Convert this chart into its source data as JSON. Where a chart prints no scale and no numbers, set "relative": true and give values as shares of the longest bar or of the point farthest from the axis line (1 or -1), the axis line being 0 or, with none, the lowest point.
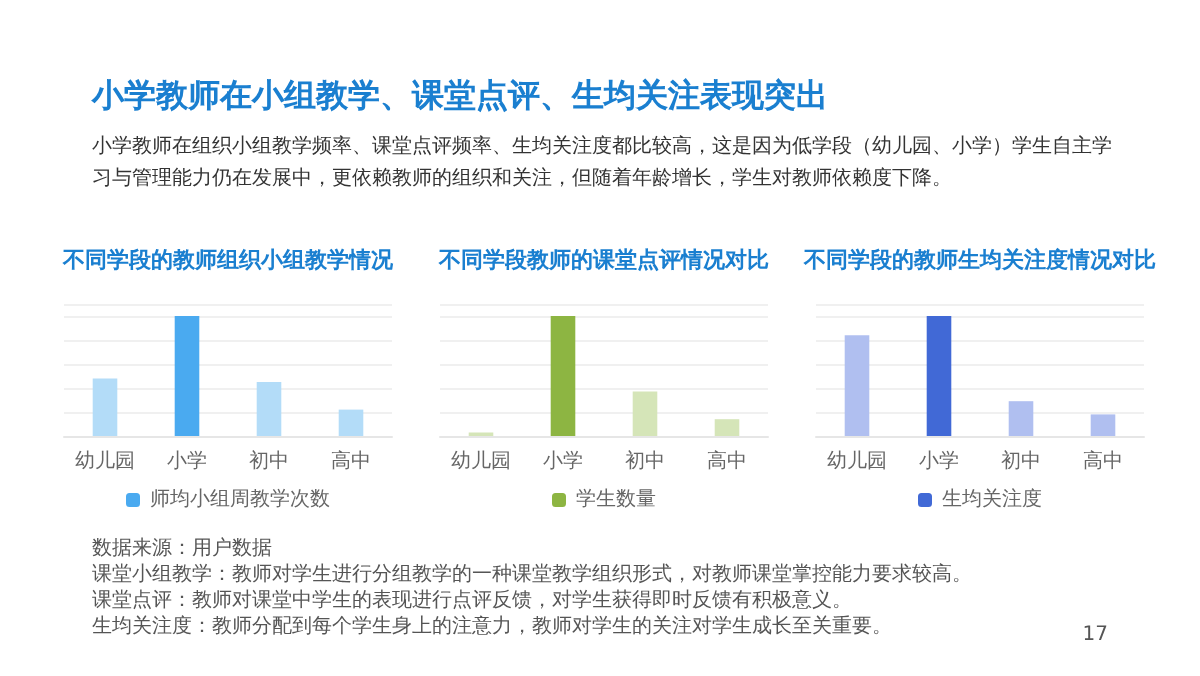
{
  "chart_data": [
    {
      "type": "other",
      "title": "小学教师在小组教学、课堂点评、生均关注表现突出",
      "subtitle": "小学教师在组织小组教学频率、课堂点评频率、生均关注度都比较高，这是因为低学段（幼儿园、小学）学生自主学习与管理能力仍在发展中，更依赖教师的组织和关注，但随着年龄增长，学生对教师依赖度下降。",
      "annotations": [
        "数据来源：用户数据",
        "课堂小组教学：教师对学生进行分组教学的一种课堂教学组织形式，对教师课堂掌控能力要求较高。",
        "课堂点评：教师对课堂中学生的表现进行点评反馈，对学生获得即时反馈有积极意义。",
        "生均关注度：教师分配到每个学生身上的注意力，教师对学生的关注对学生成长至关重要。",
        "17"
      ]
    },
    {
      "type": "bar",
      "title": "不同学段的教师组织小组教学情况",
      "categories": [
        "幼儿园",
        "小学",
        "初中",
        "高中"
      ],
      "relative": true,
      "grid": "y",
      "legend": "bottom",
      "series": [
        {
          "name": "师均小组周教学次数",
          "color": "#4aaaf0",
          "colors": [
            "#b3dcf8",
            "#4aaaf0",
            "#b3dcf8",
            "#b3dcf8"
          ],
          "values": [
            0.48,
            1,
            0.45,
            0.22
          ]
        }
      ]
    },
    {
      "type": "bar",
      "title": "不同学段教师的课堂点评情况对比",
      "categories": [
        "幼儿园",
        "小学",
        "初中",
        "高中"
      ],
      "relative": true,
      "grid": "y",
      "legend": "bottom",
      "series": [
        {
          "name": "学生数量",
          "color": "#8db542",
          "colors": [
            "#d5e5b8",
            "#8db542",
            "#d5e5b8",
            "#d5e5b8"
          ],
          "values": [
            0.03,
            1,
            0.37,
            0.14
          ]
        }
      ]
    },
    {
      "type": "bar",
      "title": "不同学段的教师生均关注度情况对比",
      "categories": [
        "幼儿园",
        "小学",
        "初中",
        "高中"
      ],
      "relative": true,
      "grid": "y",
      "legend": "bottom",
      "series": [
        {
          "name": "生均关注度",
          "color": "#4169d6",
          "colors": [
            "#b0bff0",
            "#4169d6",
            "#b0bff0",
            "#b0bff0"
          ],
          "values": [
            0.84,
            1,
            0.29,
            0.18
          ]
        }
      ]
    }
  ]
}
